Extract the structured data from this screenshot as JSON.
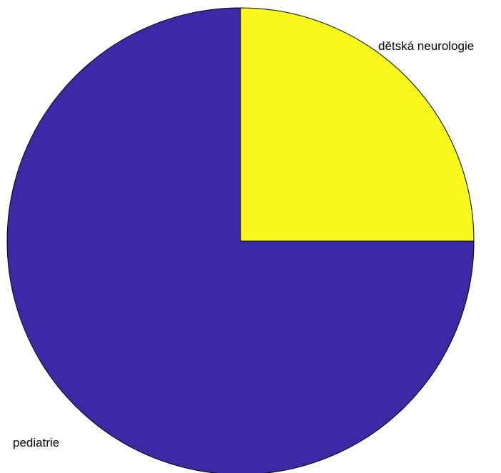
{
  "chart_data": {
    "type": "pie",
    "title": "",
    "slices": [
      {
        "label": "dětská neurologie",
        "value": 25,
        "color": "#f8f81a"
      },
      {
        "label": "pediatrie",
        "value": 75,
        "color": "#3c29a6"
      }
    ],
    "start_angle": "top",
    "direction": "clockwise",
    "legend": "none"
  }
}
